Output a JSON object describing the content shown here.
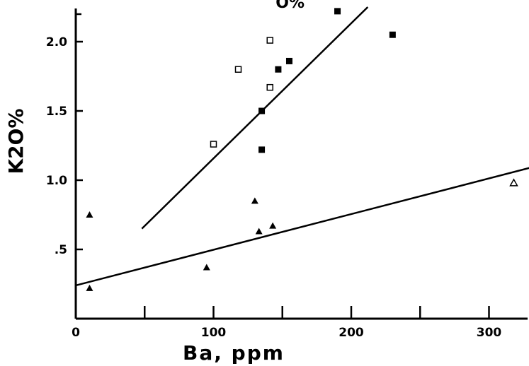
{
  "chart_data": {
    "type": "scatter",
    "title": "",
    "xlabel": "Ba, ppm",
    "ylabel": "K2O%",
    "top_fragment": "O%",
    "xlim": [
      0,
      320
    ],
    "ylim": [
      0,
      2.2
    ],
    "x_ticks": [
      0,
      50,
      100,
      150,
      200,
      250,
      300
    ],
    "x_tick_labels": [
      "0",
      "",
      "100",
      "",
      "200",
      "",
      "300"
    ],
    "y_ticks": [
      0.5,
      1.0,
      1.5,
      2.0
    ],
    "y_tick_labels": [
      ".5",
      "1.0",
      "1.5",
      "2.0"
    ],
    "grid": false,
    "series": [
      {
        "marker": "filled-square",
        "color": "#000000",
        "points": [
          [
            190,
            2.22
          ],
          [
            230,
            2.05
          ],
          [
            155,
            1.86
          ],
          [
            147,
            1.8
          ],
          [
            135,
            1.5
          ],
          [
            135,
            1.22
          ]
        ]
      },
      {
        "marker": "open-square",
        "color": "#000000",
        "points": [
          [
            141,
            2.01
          ],
          [
            118,
            1.8
          ],
          [
            141,
            1.67
          ],
          [
            100,
            1.26
          ]
        ]
      },
      {
        "marker": "filled-triangle",
        "color": "#000000",
        "points": [
          [
            10,
            0.75
          ],
          [
            10,
            0.22
          ],
          [
            130,
            0.85
          ],
          [
            133,
            0.63
          ],
          [
            143,
            0.67
          ],
          [
            95,
            0.37
          ]
        ]
      },
      {
        "marker": "open-triangle",
        "color": "#000000",
        "points": [
          [
            318,
            0.98
          ]
        ]
      }
    ],
    "lines": [
      {
        "x": [
          48,
          212
        ],
        "y": [
          0.65,
          2.25
        ]
      },
      {
        "x": [
          0,
          330
        ],
        "y": [
          0.24,
          1.09
        ]
      }
    ]
  }
}
